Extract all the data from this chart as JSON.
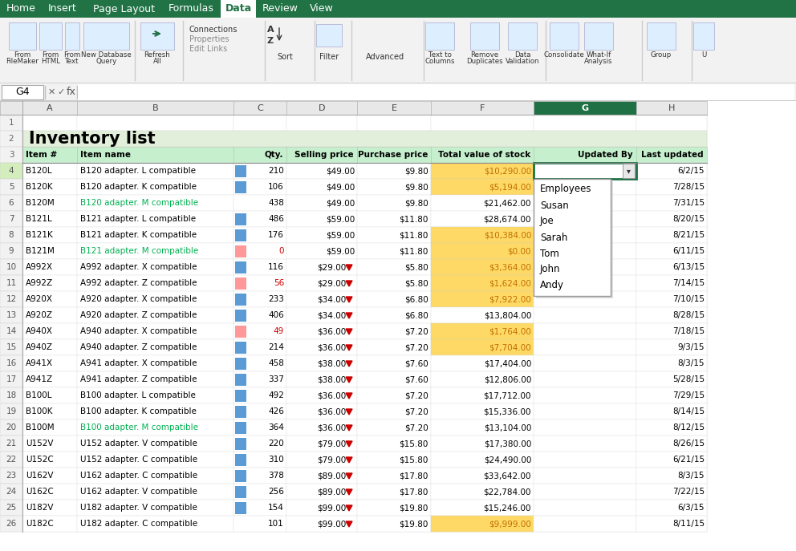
{
  "title": "Inventory list",
  "ribbon_tabs": [
    "Home",
    "Insert",
    "Page Layout",
    "Formulas",
    "Data",
    "Review",
    "View"
  ],
  "active_tab": "Data",
  "formula_bar_cell": "G4",
  "col_headers": [
    "A",
    "B",
    "C",
    "D",
    "E",
    "F",
    "G",
    "H"
  ],
  "headers": [
    "Item #",
    "Item name",
    "Qty.",
    "Selling price",
    "Purchase price",
    "Total value of stock",
    "Updated By",
    "Last updated"
  ],
  "rows": [
    [
      "B120L",
      "B120 adapter. L compatible",
      "210",
      "$49.00",
      "$9.80",
      "$10,290.00",
      "",
      "6/2/15"
    ],
    [
      "B120K",
      "B120 adapter. K compatible",
      "106",
      "$49.00",
      "$9.80",
      "$5,194.00",
      "",
      "7/28/15"
    ],
    [
      "B120M",
      "B120 adapter. M compatible",
      "438",
      "$49.00",
      "$9.80",
      "$21,462.00",
      "",
      "7/31/15"
    ],
    [
      "B121L",
      "B121 adapter. L compatible",
      "486",
      "$59.00",
      "$11.80",
      "$28,674.00",
      "",
      "8/20/15"
    ],
    [
      "B121K",
      "B121 adapter. K compatible",
      "176",
      "$59.00",
      "$11.80",
      "$10,384.00",
      "",
      "8/21/15"
    ],
    [
      "B121M",
      "B121 adapter. M compatible",
      "0",
      "$59.00",
      "$11.80",
      "$0.00",
      "",
      "6/11/15"
    ],
    [
      "A992X",
      "A992 adapter. X compatible",
      "116",
      "$29.00",
      "$5.80",
      "$3,364.00",
      "",
      "6/13/15"
    ],
    [
      "A992Z",
      "A992 adapter. Z compatible",
      "56",
      "$29.00",
      "$5.80",
      "$1,624.00",
      "",
      "7/14/15"
    ],
    [
      "A920X",
      "A920 adapter. X compatible",
      "233",
      "$34.00",
      "$6.80",
      "$7,922.00",
      "",
      "7/10/15"
    ],
    [
      "A920Z",
      "A920 adapter. Z compatible",
      "406",
      "$34.00",
      "$6.80",
      "$13,804.00",
      "",
      "8/28/15"
    ],
    [
      "A940X",
      "A940 adapter. X compatible",
      "49",
      "$36.00",
      "$7.20",
      "$1,764.00",
      "",
      "7/18/15"
    ],
    [
      "A940Z",
      "A940 adapter. Z compatible",
      "214",
      "$36.00",
      "$7.20",
      "$7,704.00",
      "",
      "9/3/15"
    ],
    [
      "A941X",
      "A941 adapter. X compatible",
      "458",
      "$38.00",
      "$7.60",
      "$17,404.00",
      "",
      "8/3/15"
    ],
    [
      "A941Z",
      "A941 adapter. Z compatible",
      "337",
      "$38.00",
      "$7.60",
      "$12,806.00",
      "",
      "5/28/15"
    ],
    [
      "B100L",
      "B100 adapter. L compatible",
      "492",
      "$36.00",
      "$7.20",
      "$17,712.00",
      "",
      "7/29/15"
    ],
    [
      "B100K",
      "B100 adapter. K compatible",
      "426",
      "$36.00",
      "$7.20",
      "$15,336.00",
      "",
      "8/14/15"
    ],
    [
      "B100M",
      "B100 adapter. M compatible",
      "364",
      "$36.00",
      "$7.20",
      "$13,104.00",
      "",
      "8/12/15"
    ],
    [
      "U152V",
      "U152 adapter. V compatible",
      "220",
      "$79.00",
      "$15.80",
      "$17,380.00",
      "",
      "8/26/15"
    ],
    [
      "U152C",
      "U152 adapter. C compatible",
      "310",
      "$79.00",
      "$15.80",
      "$24,490.00",
      "",
      "6/21/15"
    ],
    [
      "U162V",
      "U162 adapter. C compatible",
      "378",
      "$89.00",
      "$17.80",
      "$33,642.00",
      "",
      "8/3/15"
    ],
    [
      "U162C",
      "U162 adapter. V compatible",
      "256",
      "$89.00",
      "$17.80",
      "$22,784.00",
      "",
      "7/22/15"
    ],
    [
      "U182V",
      "U182 adapter. V compatible",
      "154",
      "$99.00",
      "$19.80",
      "$15,246.00",
      "",
      "6/3/15"
    ],
    [
      "U182C",
      "U182 adapter. C compatible",
      "101",
      "$99.00",
      "$19.80",
      "$9,999.00",
      "",
      "8/11/15"
    ]
  ],
  "orange_value_rows": [
    0,
    1,
    4,
    5,
    6,
    7,
    8,
    10,
    11,
    22
  ],
  "green_name_rows": [
    2,
    5,
    16
  ],
  "pink_qty_rows": [
    5,
    7,
    10
  ],
  "blue_qty_rows": [
    0,
    1,
    3,
    4,
    6,
    8,
    9,
    11,
    12,
    13,
    14,
    15,
    16,
    17,
    18,
    19,
    20,
    21
  ],
  "red_arrow_sell_rows": [
    6,
    7,
    8,
    9,
    10,
    11,
    12,
    13,
    14,
    15,
    16,
    17,
    18,
    19,
    20,
    21,
    22
  ],
  "dropdown_options": [
    "Employees",
    "Susan",
    "Joe",
    "Sarah",
    "Tom",
    "John",
    "Andy"
  ],
  "ribbon_green": "#217346",
  "col_g_header_color": "#1F7145",
  "orange_cell_color": "#FFD966",
  "orange_text_color": "#C07000",
  "green_text_color": "#00B050",
  "pink_cell_color": "#FF9999",
  "blue_cell_color": "#5B9BD5",
  "header_row_bg": "#C6EFCE",
  "title_bg": "#E2EFDA",
  "hdr_row3_bg": "#BDD7EE"
}
